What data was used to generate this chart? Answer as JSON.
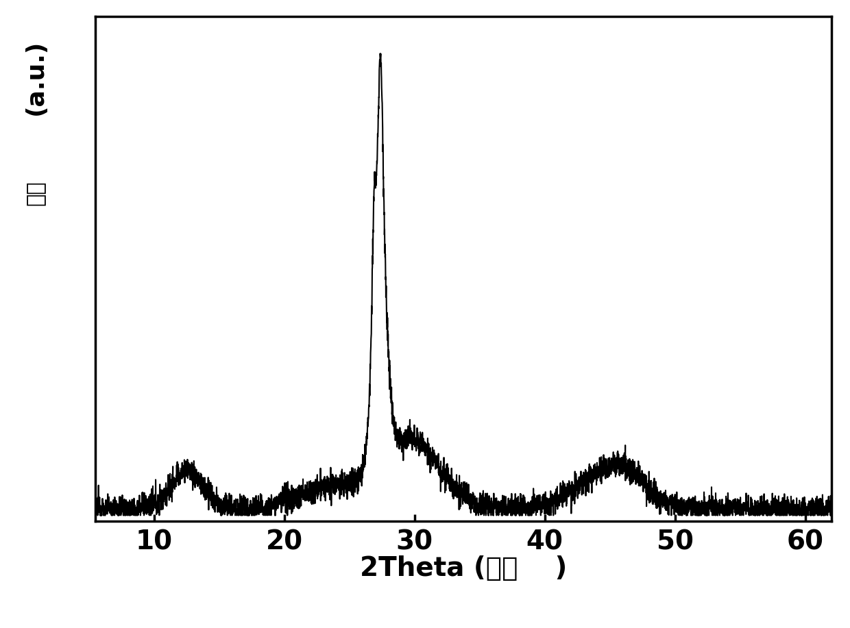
{
  "xlabel_main": "2Theta (",
  "xlabel_chinese": "角度",
  "xlabel_end": "    )",
  "ylabel_top": "(a.u.)",
  "ylabel_bottom": "强度",
  "xmin": 5.5,
  "xmax": 62,
  "xticks": [
    10,
    20,
    30,
    40,
    50,
    60
  ],
  "background_color": "#ffffff",
  "line_color": "#000000",
  "linewidth": 1.5,
  "seed": 12345
}
